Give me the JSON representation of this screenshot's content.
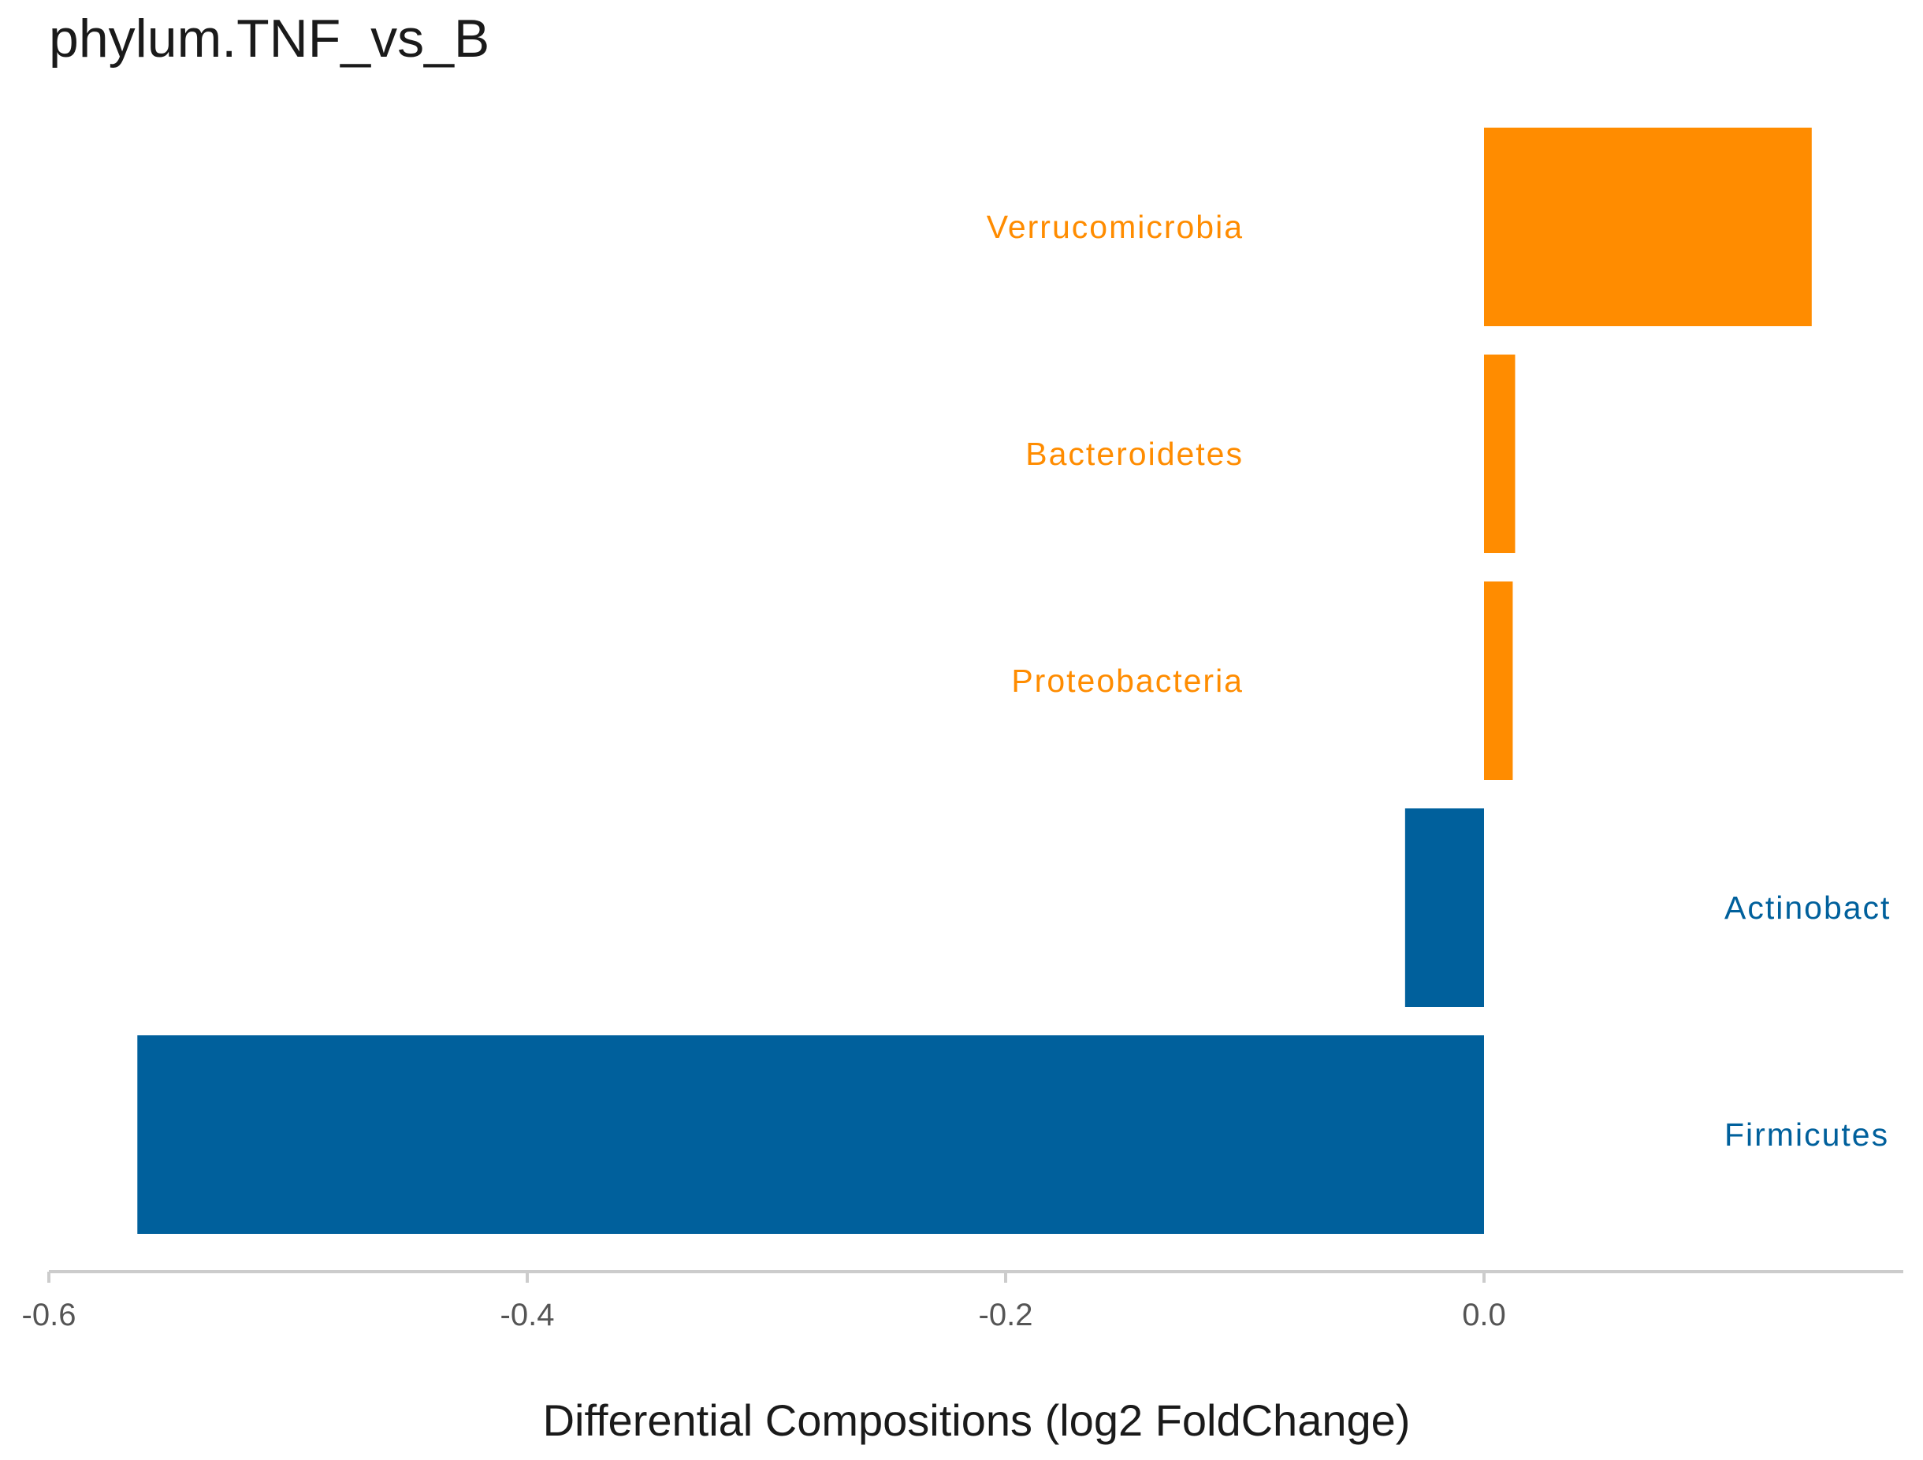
{
  "chart_data": {
    "type": "bar",
    "orientation": "horizontal",
    "title": "phylum.TNF_vs_B",
    "xlabel": "Differential Compositions (log2 FoldChange)",
    "ylabel": "",
    "xlim": [
      -0.6,
      0.17
    ],
    "x_ticks": [
      "-0.6",
      "-0.4",
      "-0.2",
      "0.0"
    ],
    "x_tick_values": [
      -0.6,
      -0.4,
      -0.2,
      0.0
    ],
    "grid": false,
    "legend": "none",
    "categories": [
      "Verrucomicrobia",
      "Bacteroidetes",
      "Proteobacteria",
      "Actinobact",
      "Firmicutes"
    ],
    "values": [
      0.137,
      0.013,
      0.012,
      -0.033,
      -0.563
    ],
    "colors": {
      "positive": "#FF8C00",
      "negative": "#00609C",
      "axis": "#cccccc"
    }
  }
}
